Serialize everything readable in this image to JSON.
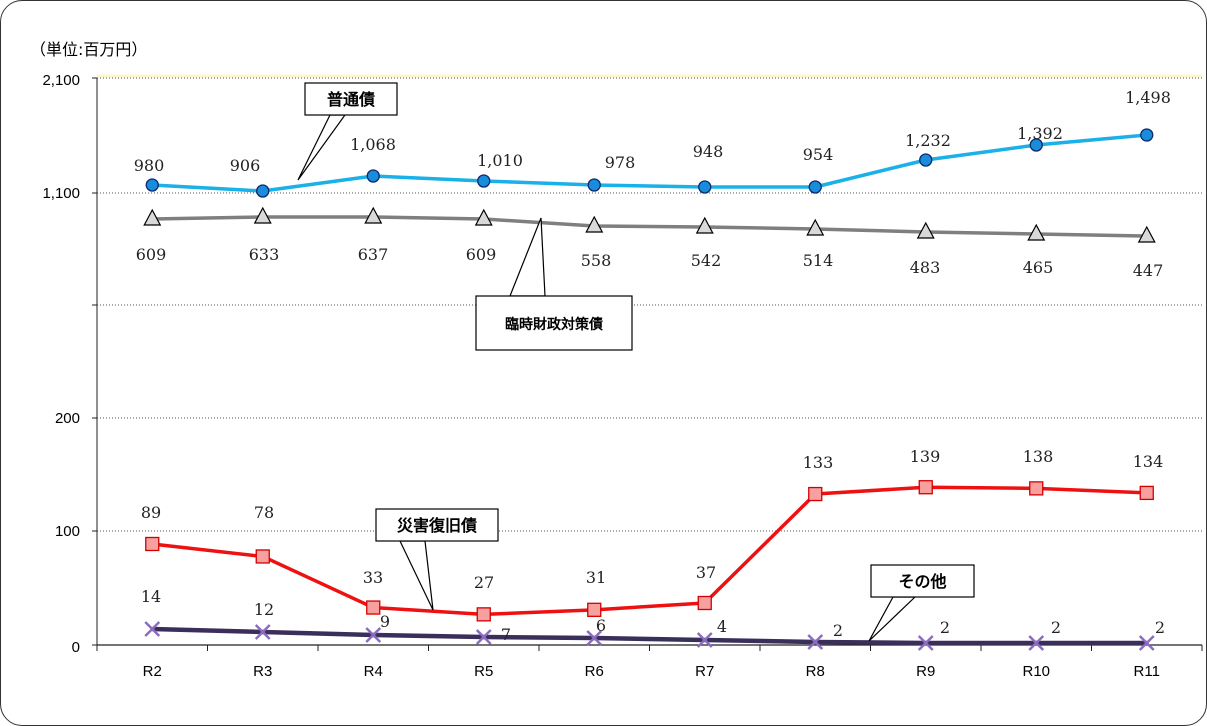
{
  "unit_label": "（単位:百万円）",
  "colors": {
    "futsu": "#1ab0e8",
    "rinji": "#7f7f7f",
    "saigai": "#ee1111",
    "sonota": "#3a2e5a"
  },
  "chart_data": {
    "type": "line",
    "categories": [
      "R2",
      "R3",
      "R4",
      "R5",
      "R6",
      "R7",
      "R8",
      "R9",
      "R10",
      "R11"
    ],
    "y_ticks": [
      "2,100",
      "1,100",
      "200",
      "100",
      "0"
    ],
    "y_axis": "broken scale",
    "grid": "horizontal dotted",
    "series": [
      {
        "name": "普通債",
        "marker": "circle",
        "values": [
          980,
          906,
          1068,
          1010,
          978,
          948,
          954,
          1232,
          1392,
          1498
        ],
        "labels": [
          "980",
          "906",
          "1,068",
          "1,010",
          "978",
          "948",
          "954",
          "1,232",
          "1,392",
          "1,498"
        ]
      },
      {
        "name": "臨時財政対策債",
        "marker": "triangle",
        "values": [
          609,
          633,
          637,
          609,
          558,
          542,
          514,
          483,
          465,
          447
        ],
        "labels": [
          "609",
          "633",
          "637",
          "609",
          "558",
          "542",
          "514",
          "483",
          "465",
          "447"
        ]
      },
      {
        "name": "災害復旧債",
        "marker": "square",
        "values": [
          89,
          78,
          33,
          27,
          31,
          37,
          133,
          139,
          138,
          134
        ],
        "labels": [
          "89",
          "78",
          "33",
          "27",
          "31",
          "37",
          "133",
          "139",
          "138",
          "134"
        ]
      },
      {
        "name": "その他",
        "marker": "cross",
        "values": [
          14,
          12,
          9,
          7,
          6,
          4,
          2,
          2,
          2,
          2
        ],
        "labels": [
          "14",
          "12",
          "9",
          "7",
          "6",
          "4",
          "2",
          "2",
          "2",
          "2"
        ]
      }
    ]
  }
}
